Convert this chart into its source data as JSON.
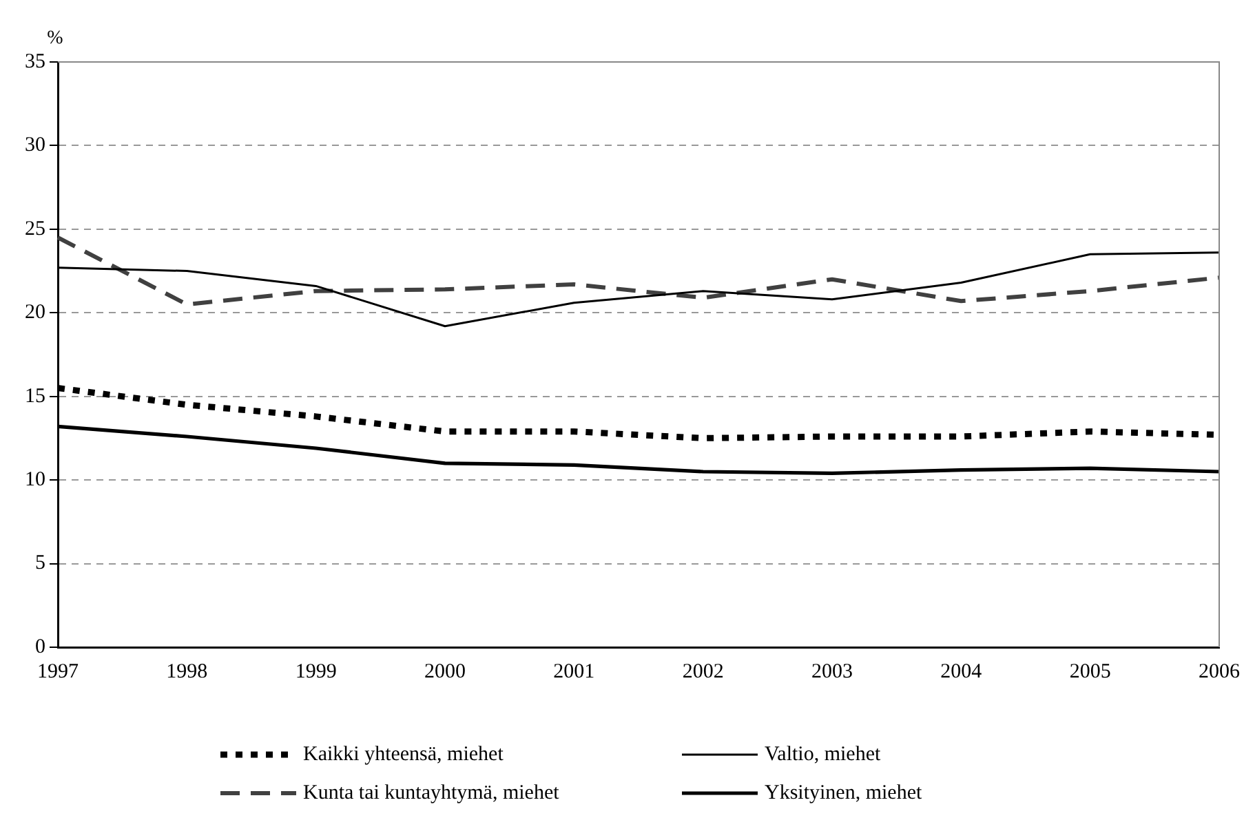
{
  "chart_data": {
    "type": "line",
    "ylabel": "%",
    "categories": [
      "1997",
      "1998",
      "1999",
      "2000",
      "2001",
      "2002",
      "2003",
      "2004",
      "2005",
      "2006"
    ],
    "series": [
      {
        "name": "Kaikki yhteensä, miehet",
        "color": "#000000",
        "line_style": "dotted",
        "values": [
          15.5,
          14.5,
          13.8,
          12.9,
          12.9,
          12.5,
          12.6,
          12.6,
          12.9,
          12.7
        ]
      },
      {
        "name": "Valtio, miehet",
        "color": "#000000",
        "line_style": "solid",
        "values": [
          22.7,
          22.5,
          21.6,
          19.2,
          20.6,
          21.3,
          20.8,
          21.8,
          23.5,
          23.6
        ]
      },
      {
        "name": "Kunta tai kuntayhtymä, miehet",
        "color": "#404040",
        "line_style": "dashed",
        "values": [
          24.5,
          20.5,
          21.3,
          21.4,
          21.7,
          20.9,
          22.0,
          20.7,
          21.3,
          22.1
        ]
      },
      {
        "name": "Yksityinen, miehet",
        "color": "#000000",
        "line_style": "solid",
        "values": [
          13.2,
          12.6,
          11.9,
          11.0,
          10.9,
          10.5,
          10.4,
          10.6,
          10.7,
          10.5
        ]
      }
    ],
    "ylim": [
      0,
      35
    ],
    "yticks": [
      0,
      5,
      10,
      15,
      20,
      25,
      30,
      35
    ],
    "grid": "y",
    "legend": "bottom",
    "marker": "none"
  }
}
